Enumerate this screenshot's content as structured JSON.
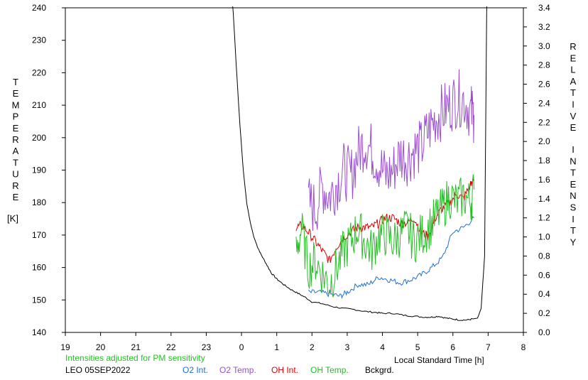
{
  "chart_data": {
    "type": "line",
    "left_axis": {
      "label_letters": [
        "T",
        "E",
        "M",
        "P",
        "E",
        "R",
        "A",
        "T",
        "U",
        "R",
        "E"
      ],
      "unit": "[K]",
      "ylim": [
        140,
        240
      ],
      "ticks": [
        140,
        150,
        160,
        170,
        180,
        190,
        200,
        210,
        220,
        230,
        240
      ]
    },
    "right_axis": {
      "label_letters_word1": [
        "R",
        "E",
        "L",
        "A",
        "T",
        "I",
        "V",
        "E"
      ],
      "label_letters_word2": [
        "I",
        "N",
        "T",
        "E",
        "N",
        "S",
        "I",
        "T",
        "Y"
      ],
      "ylim": [
        0.0,
        3.4
      ],
      "ticks": [
        "0.0",
        "0.2",
        "0.4",
        "0.6",
        "0.8",
        "1.0",
        "1.2",
        "1.4",
        "1.6",
        "1.8",
        "2.0",
        "2.2",
        "2.4",
        "2.6",
        "2.8",
        "3.0",
        "3.2",
        "3.4"
      ]
    },
    "x_axis": {
      "xlabel": "Local Standard Time [h]",
      "ticks": [
        "19",
        "20",
        "21",
        "22",
        "23",
        "0",
        "1",
        "2",
        "3",
        "4",
        "5",
        "6",
        "7",
        "8"
      ],
      "xlim": [
        19,
        32
      ]
    },
    "note": "Intensities adjusted for PM sensitivity",
    "station": "LEO 05SEP2022",
    "legend": [
      {
        "label": "O2 Int.",
        "color": "#1e6fd0"
      },
      {
        "label": "O2 Temp.",
        "color": "#9b4fd0"
      },
      {
        "label": "OH Int.",
        "color": "#e00000"
      },
      {
        "label": "OH Temp.",
        "color": "#22c022"
      },
      {
        "label": "Bckgrd.",
        "color": "#000000"
      }
    ],
    "series": [
      {
        "name": "Bckgrd.",
        "axis": "right",
        "color": "#000000",
        "x": [
          23.75,
          23.85,
          23.95,
          24.05,
          24.15,
          24.25,
          24.35,
          24.45,
          24.55,
          24.7,
          24.85,
          25.0,
          25.2,
          25.4,
          25.6,
          25.8,
          26.0,
          26.3,
          26.6,
          26.9,
          27.2,
          27.5,
          27.8,
          28.0,
          28.3,
          28.6,
          28.9,
          29.2,
          29.4,
          29.6,
          29.8,
          30.0,
          30.2,
          30.4,
          30.55,
          30.7,
          30.8,
          30.9,
          30.96
        ],
        "values": [
          3.45,
          2.8,
          2.2,
          1.7,
          1.35,
          1.15,
          1.0,
          0.9,
          0.82,
          0.72,
          0.62,
          0.56,
          0.5,
          0.45,
          0.41,
          0.37,
          0.32,
          0.3,
          0.27,
          0.25,
          0.24,
          0.22,
          0.21,
          0.2,
          0.2,
          0.18,
          0.17,
          0.16,
          0.16,
          0.17,
          0.15,
          0.14,
          0.13,
          0.13,
          0.14,
          0.15,
          0.25,
          0.8,
          3.45
        ]
      },
      {
        "name": "O2 Int.",
        "axis": "right",
        "color": "#1e6fd0",
        "x": [
          25.9,
          26.2,
          26.5,
          26.8,
          27.0,
          27.3,
          27.6,
          27.9,
          28.2,
          28.5,
          28.8,
          29.1,
          29.4,
          29.7,
          30.0,
          30.3,
          30.6
        ],
        "values": [
          0.42,
          0.42,
          0.4,
          0.38,
          0.42,
          0.5,
          0.5,
          0.58,
          0.55,
          0.52,
          0.55,
          0.6,
          0.68,
          0.78,
          1.05,
          1.1,
          1.2
        ]
      },
      {
        "name": "O2 Temp.",
        "axis": "left",
        "color": "#9b4fd0",
        "x": [
          25.9,
          26.1,
          26.3,
          26.5,
          26.7,
          26.9,
          27.1,
          27.3,
          27.5,
          27.7,
          27.9,
          28.1,
          28.3,
          28.5,
          28.7,
          28.9,
          29.1,
          29.3,
          29.5,
          29.7,
          29.9,
          30.1,
          30.3,
          30.5,
          30.6
        ],
        "values": [
          180,
          178,
          185,
          182,
          186,
          190,
          188,
          195,
          199,
          196,
          192,
          188,
          190,
          195,
          194,
          196,
          197,
          202,
          206,
          208,
          210,
          212,
          212,
          208,
          207
        ]
      },
      {
        "name": "OH Int.",
        "axis": "right",
        "color": "#e00000",
        "x": [
          25.55,
          25.7,
          25.9,
          26.1,
          26.3,
          26.5,
          26.7,
          26.9,
          27.1,
          27.3,
          27.5,
          27.7,
          27.9,
          28.1,
          28.3,
          28.5,
          28.7,
          28.9,
          29.1,
          29.3,
          29.5,
          29.7,
          29.9,
          30.1,
          30.3,
          30.5,
          30.6
        ],
        "values": [
          1.1,
          1.12,
          1.05,
          0.95,
          0.85,
          0.75,
          0.9,
          1.0,
          1.05,
          1.1,
          1.1,
          1.1,
          1.15,
          1.2,
          1.2,
          1.15,
          1.15,
          1.2,
          1.05,
          1.0,
          1.2,
          1.3,
          1.35,
          1.45,
          1.4,
          1.55,
          1.6
        ]
      },
      {
        "name": "OH Temp.",
        "axis": "left",
        "color": "#22c022",
        "x": [
          25.55,
          25.7,
          25.9,
          26.1,
          26.3,
          26.5,
          26.7,
          26.9,
          27.1,
          27.3,
          27.5,
          27.7,
          27.9,
          28.1,
          28.3,
          28.5,
          28.7,
          28.9,
          29.1,
          29.3,
          29.5,
          29.7,
          29.9,
          30.1,
          30.3,
          30.5,
          30.6
        ],
        "values": [
          165,
          172,
          160,
          162,
          158,
          155,
          160,
          165,
          168,
          172,
          168,
          165,
          170,
          170,
          168,
          170,
          172,
          168,
          170,
          172,
          175,
          178,
          182,
          180,
          182,
          180,
          184
        ]
      }
    ]
  }
}
